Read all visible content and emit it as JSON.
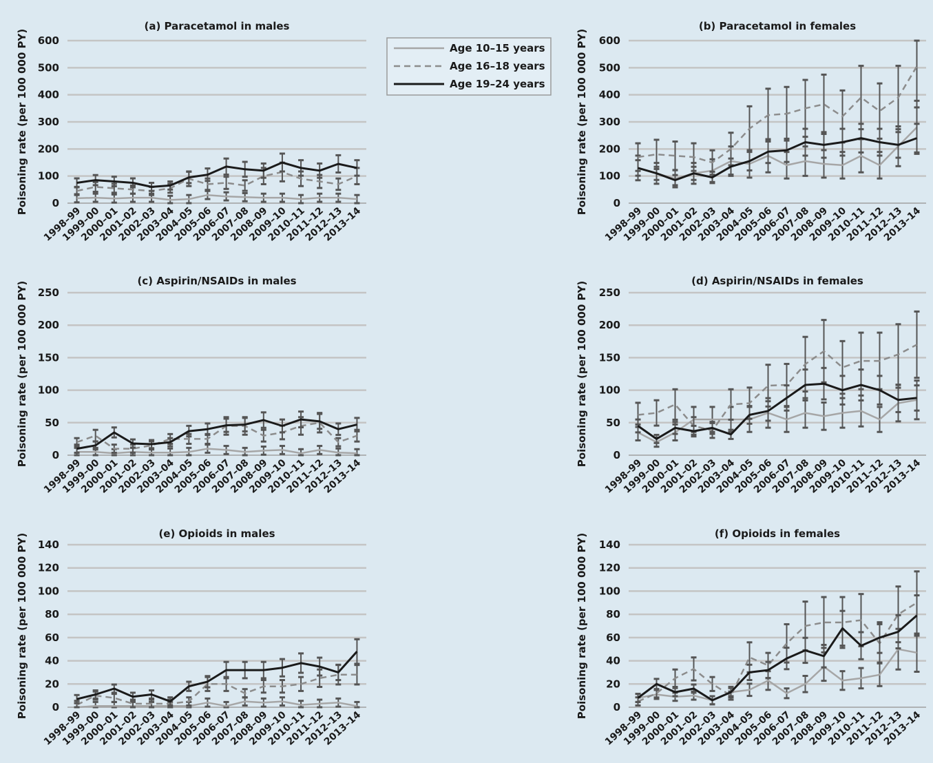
{
  "categories": [
    "1998–99",
    "1999–00",
    "2000–01",
    "2001–02",
    "2002–03",
    "2003–04",
    "2004–05",
    "2005–06",
    "2006–07",
    "2007–08",
    "2008–09",
    "2009–10",
    "2010–11",
    "2011–12",
    "2012–13",
    "2013–14"
  ],
  "ylabel": "Poisoning rate (per 100 000 PY)",
  "legend": {
    "position": "top-center",
    "entries": [
      {
        "label": "Age 10–15 years",
        "color": "#a6a6a6",
        "style": "solid"
      },
      {
        "label": "Age 16–18 years",
        "color": "#8c8c8c",
        "style": "dashed"
      },
      {
        "label": "Age 19–24 years",
        "color": "#1a1a1a",
        "style": "solid"
      }
    ]
  },
  "colors": {
    "background": "#dce9f1",
    "grid": "#c4c4c4",
    "errorbar": "#555555"
  },
  "chart_data": [
    {
      "type": "line",
      "title": "(a) Paracetamol in males",
      "ylabel": "Poisoning rate (per 100 000 PY)",
      "ylim": [
        0,
        600
      ],
      "yticks": [
        0,
        100,
        200,
        300,
        400,
        500,
        600
      ],
      "grid": true,
      "series": [
        {
          "name": "Age 10–15 years",
          "values": [
            18,
            20,
            17,
            20,
            20,
            12,
            15,
            30,
            25,
            22,
            20,
            20,
            15,
            20,
            20,
            15
          ]
        },
        {
          "name": "Age 16–18 years",
          "values": [
            45,
            60,
            55,
            50,
            45,
            55,
            90,
            70,
            75,
            65,
            100,
            115,
            90,
            80,
            70,
            100
          ]
        },
        {
          "name": "Age 19–24 years",
          "values": [
            75,
            85,
            80,
            75,
            60,
            65,
            95,
            105,
            135,
            125,
            120,
            150,
            130,
            120,
            145,
            130
          ]
        }
      ]
    },
    {
      "type": "line",
      "title": "(b) Paracetamol in females",
      "ylabel": "Poisoning rate (per 100 000 PY)",
      "ylim": [
        0,
        600
      ],
      "yticks": [
        0,
        100,
        200,
        300,
        400,
        500,
        600
      ],
      "grid": true,
      "series": [
        {
          "name": "Age 10–15 years",
          "values": [
            130,
            110,
            90,
            110,
            120,
            155,
            145,
            175,
            140,
            155,
            145,
            140,
            175,
            140,
            210,
            280
          ]
        },
        {
          "name": "Age 16–18 years",
          "values": [
            170,
            180,
            175,
            170,
            150,
            200,
            275,
            325,
            330,
            350,
            365,
            320,
            390,
            340,
            390,
            505
          ]
        },
        {
          "name": "Age 19–24 years",
          "values": [
            130,
            110,
            85,
            110,
            95,
            135,
            155,
            190,
            195,
            225,
            215,
            225,
            240,
            225,
            215,
            240
          ]
        }
      ]
    },
    {
      "type": "line",
      "title": "(c) Aspirin/NSAIDs in males",
      "ylabel": "Poisoning rate (per 100 000 PY)",
      "ylim": [
        0,
        250
      ],
      "yticks": [
        0,
        50,
        100,
        150,
        200,
        250
      ],
      "grid": true,
      "series": [
        {
          "name": "Age 10–15 years",
          "values": [
            5,
            5,
            3,
            5,
            4,
            4,
            5,
            10,
            8,
            5,
            7,
            8,
            3,
            8,
            4,
            3
          ]
        },
        {
          "name": "Age 16–18 years",
          "values": [
            20,
            30,
            10,
            10,
            15,
            25,
            25,
            25,
            45,
            45,
            30,
            35,
            45,
            50,
            20,
            30
          ]
        },
        {
          "name": "Age 19–24 years",
          "values": [
            10,
            15,
            35,
            18,
            17,
            20,
            37,
            40,
            46,
            47,
            54,
            45,
            55,
            52,
            40,
            47
          ]
        }
      ]
    },
    {
      "type": "line",
      "title": "(d) Aspirin/NSAIDs in females",
      "ylabel": "Poisoning rate (per 100 000 PY)",
      "ylim": [
        0,
        250
      ],
      "yticks": [
        0,
        50,
        100,
        150,
        200,
        250
      ],
      "grid": true,
      "series": [
        {
          "name": "Age 10–15 years",
          "values": [
            35,
            20,
            35,
            55,
            55,
            55,
            55,
            65,
            55,
            65,
            60,
            65,
            68,
            55,
            80,
            85
          ]
        },
        {
          "name": "Age 16–18 years",
          "values": [
            62,
            65,
            78,
            45,
            38,
            78,
            80,
            107,
            108,
            140,
            160,
            135,
            145,
            145,
            155,
            170
          ]
        },
        {
          "name": "Age 19–24 years",
          "values": [
            45,
            25,
            42,
            37,
            42,
            32,
            62,
            68,
            88,
            108,
            110,
            100,
            108,
            100,
            85,
            88
          ]
        }
      ]
    },
    {
      "type": "line",
      "title": "(e) Opioids in males",
      "ylabel": "Poisoning rate (per 100 000 PY)",
      "ylim": [
        0,
        140
      ],
      "yticks": [
        0,
        20,
        40,
        60,
        80,
        100,
        120,
        140
      ],
      "grid": true,
      "series": [
        {
          "name": "Age 10–15 years",
          "values": [
            0,
            1,
            1,
            1,
            1,
            1,
            1,
            4,
            1,
            5,
            4,
            5,
            2,
            3,
            4,
            1
          ]
        },
        {
          "name": "Age 16–18 years",
          "values": [
            2,
            10,
            8,
            3,
            3,
            3,
            5,
            20,
            20,
            12,
            18,
            18,
            20,
            25,
            28,
            28
          ]
        },
        {
          "name": "Age 19–24 years",
          "values": [
            7,
            11,
            16,
            9,
            11,
            5,
            18,
            22,
            32,
            32,
            32,
            34,
            38,
            35,
            30,
            48
          ]
        }
      ]
    },
    {
      "type": "line",
      "title": "(f) Opioids in females",
      "ylabel": "Poisoning rate (per 100 000 PY)",
      "ylim": [
        0,
        140
      ],
      "yticks": [
        0,
        20,
        40,
        60,
        80,
        100,
        120,
        140
      ],
      "grid": true,
      "series": [
        {
          "name": "Age 10–15 years",
          "values": [
            8,
            11,
            9,
            10,
            6,
            13,
            15,
            23,
            12,
            20,
            35,
            23,
            25,
            28,
            50,
            47
          ]
        },
        {
          "name": "Age 16–18 years",
          "values": [
            5,
            12,
            25,
            33,
            20,
            10,
            43,
            36,
            55,
            70,
            73,
            73,
            75,
            55,
            80,
            90
          ]
        },
        {
          "name": "Age 19–24 years",
          "values": [
            8,
            20,
            13,
            16,
            6,
            13,
            30,
            32,
            42,
            49,
            44,
            68,
            53,
            60,
            65,
            79
          ]
        }
      ]
    }
  ]
}
